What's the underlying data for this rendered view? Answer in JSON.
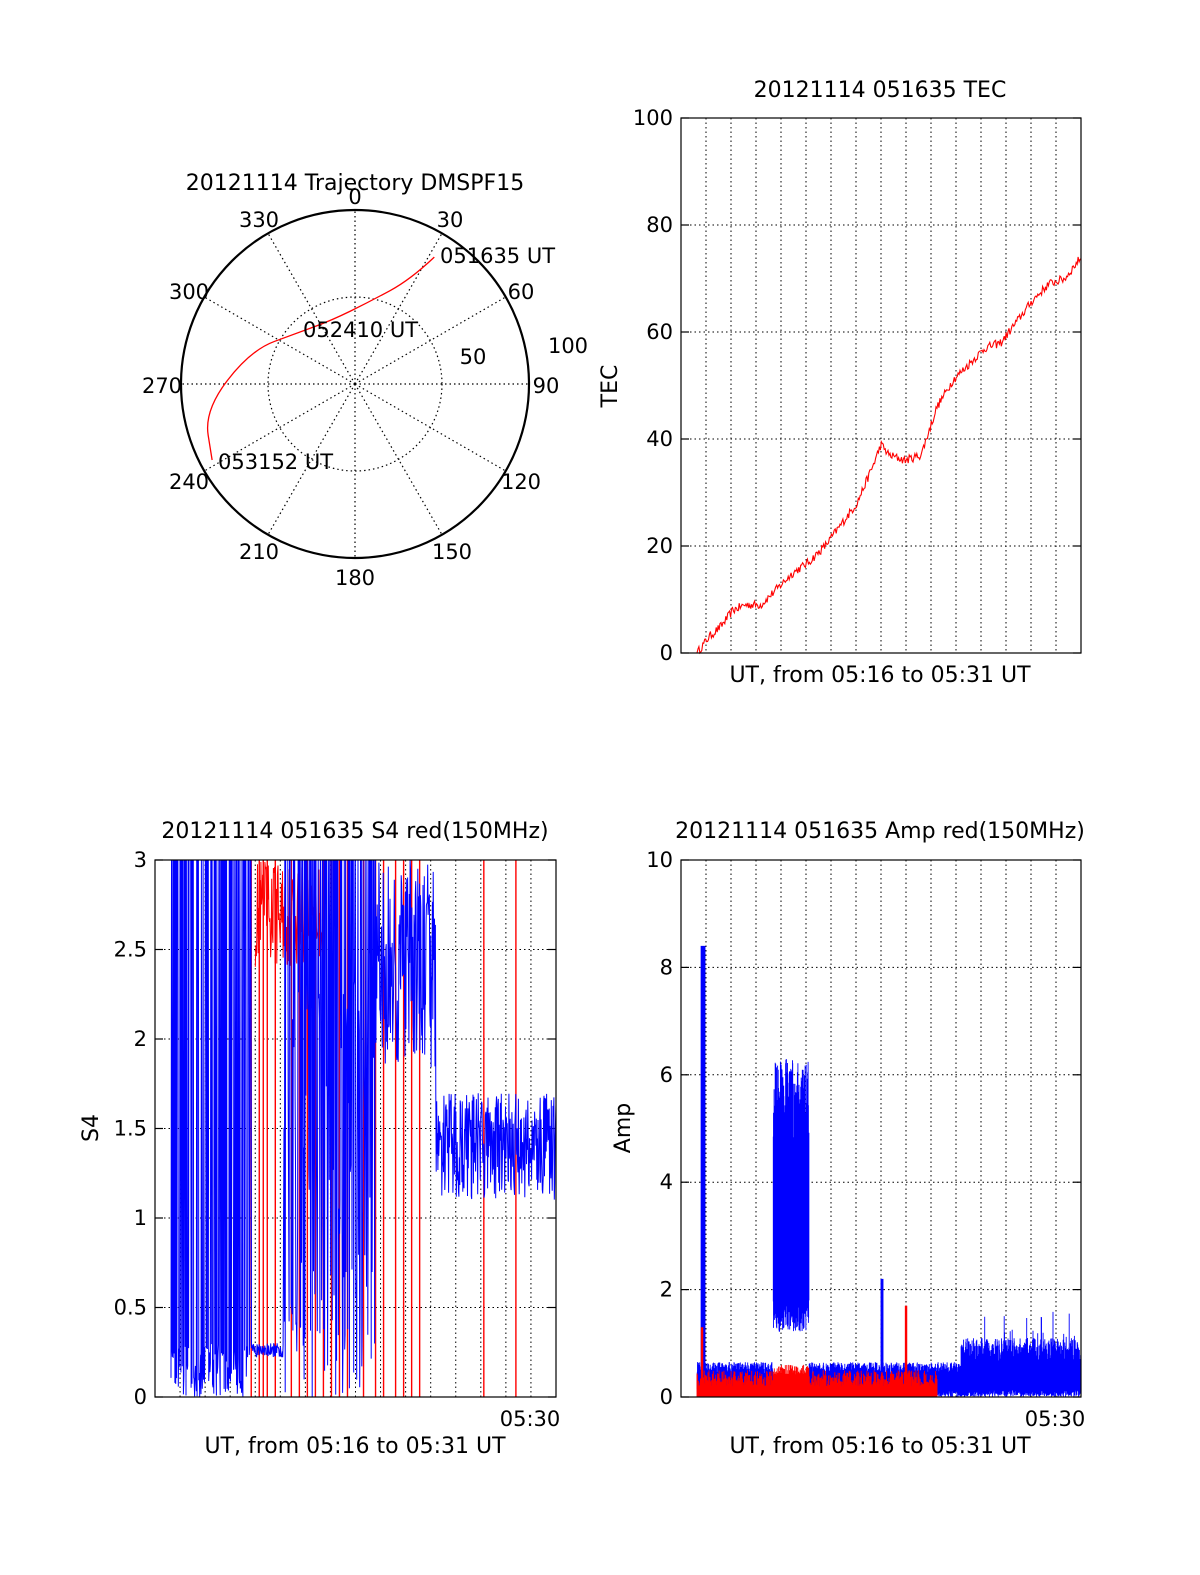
{
  "chart_data": [
    {
      "type": "scatter",
      "projection": "polar",
      "title": "20121114 Trajectory DMSPF15",
      "azimuth_labels": [
        "0",
        "30",
        "60",
        "90",
        "120",
        "150",
        "180",
        "210",
        "240",
        "270",
        "300",
        "330"
      ],
      "radial_labels": [
        "50",
        "100"
      ],
      "rlim": [
        0,
        100
      ],
      "grid": true,
      "series": [
        {
          "color": "#ff0000",
          "points": [
            {
              "az": 32,
              "r": 86
            },
            {
              "az": 28,
              "r": 68
            },
            {
              "az": 10,
              "r": 48
            },
            {
              "az": -20,
              "r": 39
            },
            {
              "az": -48,
              "r": 44
            },
            {
              "az": -72,
              "r": 63
            },
            {
              "az": -100,
              "r": 88
            },
            {
              "az": -118,
              "r": 93
            }
          ]
        }
      ],
      "annotations": [
        {
          "text": "051635 UT",
          "az": 32,
          "r": 86
        },
        {
          "text": "052410 UT",
          "az": 10,
          "r": 48
        },
        {
          "text": "053152 UT",
          "az": -118,
          "r": 93
        }
      ]
    },
    {
      "type": "line",
      "title": "20121114 051635 TEC",
      "xlabel": "UT, from 05:16 to 05:31 UT",
      "ylabel": "TEC",
      "ylim": [
        0,
        100
      ],
      "yticks": [
        "0",
        "20",
        "40",
        "60",
        "80",
        "100"
      ],
      "grid": true,
      "series": [
        {
          "color": "#ff0000",
          "x_fraction": [
            0.04,
            0.07,
            0.1,
            0.13,
            0.16,
            0.2,
            0.24,
            0.28,
            0.32,
            0.36,
            0.4,
            0.44,
            0.48,
            0.5,
            0.52,
            0.56,
            0.6,
            0.64,
            0.68,
            0.72,
            0.76,
            0.8,
            0.84,
            0.88,
            0.92,
            0.96,
            1.0
          ],
          "values": [
            0,
            3,
            5,
            8,
            9,
            9,
            12,
            15,
            17,
            20,
            24,
            28,
            35,
            39,
            37,
            36,
            37,
            46,
            51,
            54,
            57,
            58,
            62,
            66,
            69,
            70,
            74
          ]
        }
      ]
    },
    {
      "type": "line",
      "title": "20121114 051635 S4 red(150MHz)",
      "xlabel": "UT, from 05:16 to 05:31 UT",
      "ylabel": "S4",
      "ylim": [
        0,
        3
      ],
      "yticks": [
        "0",
        "0.5",
        "1",
        "1.5",
        "2",
        "2.5",
        "3"
      ],
      "xticks": [
        "05:30"
      ],
      "grid": true,
      "series": [
        {
          "color": "#0000ff",
          "description": "dense spiky S4 trace, saturating to 3 early, settling around 1.2-1.5 late"
        },
        {
          "color": "#ff0000",
          "description": "intermittent vertical spikes to 3"
        }
      ]
    },
    {
      "type": "line",
      "title": "20121114 051635 Amp red(150MHz)",
      "xlabel": "UT, from 05:16 to 05:31 UT",
      "ylabel": "Amp",
      "ylim": [
        0,
        10
      ],
      "yticks": [
        "0",
        "2",
        "4",
        "6",
        "8",
        "10"
      ],
      "xticks": [
        "05:30"
      ],
      "grid": true,
      "series": [
        {
          "color": "#0000ff",
          "description": "amplitude trace, mostly 0-0.6, spike to ~8.4 early, burst to ~6 around 05:19"
        },
        {
          "color": "#ff0000",
          "description": "amplitude trace, mostly 0-0.5, peaks near 1.3 and 1.7"
        }
      ]
    }
  ]
}
